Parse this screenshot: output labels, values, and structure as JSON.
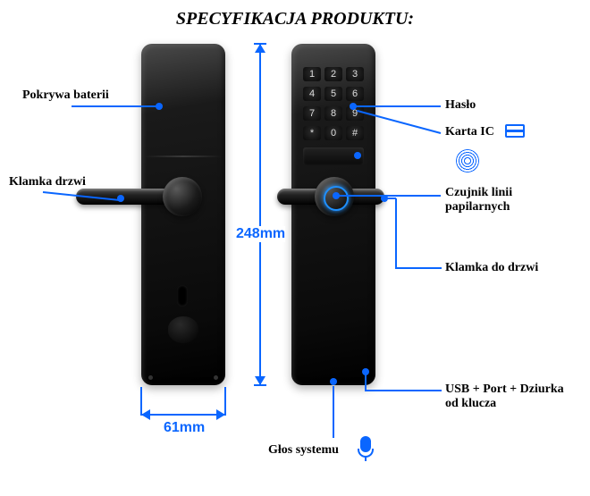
{
  "title": "SPECYFIKACJA PRODUKTU:",
  "dimensions": {
    "height": "248mm",
    "width": "61mm"
  },
  "labels": {
    "battery_cover": "Pokrywa baterii",
    "door_handle_left": "Klamka drzwi",
    "password": "Hasło",
    "ic_card": "Karta IC",
    "fingerprint_sensor": "Czujnik linii papilarnych",
    "door_handle_right": "Klamka do drzwi",
    "usb_port_keyhole": "USB + Port + Dziurka od klucza",
    "system_voice": "Głos systemu"
  },
  "keypad": [
    "1",
    "2",
    "3",
    "4",
    "5",
    "6",
    "7",
    "8",
    "9",
    "*",
    "0",
    "#"
  ],
  "colors": {
    "accent": "#0a66ff",
    "lock_body": "#1a1a1a",
    "background": "#ffffff"
  }
}
